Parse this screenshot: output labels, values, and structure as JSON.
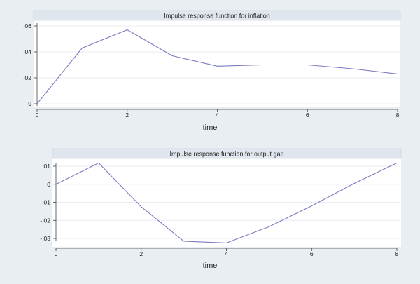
{
  "chart_data": [
    {
      "type": "line",
      "title": "Impulse response function for inflation",
      "xlabel": "time",
      "ylabel": "",
      "x": [
        0,
        1,
        2,
        3,
        4,
        5,
        6,
        7,
        8
      ],
      "values": [
        0.0,
        0.043,
        0.057,
        0.037,
        0.029,
        0.03,
        0.03,
        0.027,
        0.023
      ],
      "xlim": [
        0,
        8
      ],
      "ylim": [
        0,
        0.06
      ],
      "xticks": [
        0,
        2,
        4,
        6,
        8
      ],
      "xtick_labels": [
        "0",
        "2",
        "4",
        "6",
        "8"
      ],
      "yticks": [
        0,
        0.02,
        0.04,
        0.06
      ],
      "ytick_labels": [
        "0",
        ".02",
        ".04",
        ".06"
      ],
      "grid": true,
      "line_color": "#7a7ac2"
    },
    {
      "type": "line",
      "title": "Impulse response function for output gap",
      "xlabel": "time",
      "ylabel": "",
      "x": [
        0,
        1,
        2,
        3,
        4,
        5,
        6,
        7,
        8
      ],
      "values": [
        0.0,
        0.0118,
        -0.0125,
        -0.0315,
        -0.0325,
        -0.0235,
        -0.012,
        0.0005,
        0.0118
      ],
      "xlim": [
        0,
        8
      ],
      "ylim": [
        -0.03,
        0.01
      ],
      "xticks": [
        0,
        2,
        4,
        6,
        8
      ],
      "xtick_labels": [
        "0",
        "2",
        "4",
        "6",
        "8"
      ],
      "yticks": [
        -0.03,
        -0.02,
        -0.01,
        0,
        0.01
      ],
      "ytick_labels": [
        "-.03",
        "-.02",
        "-.01",
        "0",
        ".01"
      ],
      "grid": true,
      "line_color": "#7a7ac2"
    }
  ]
}
